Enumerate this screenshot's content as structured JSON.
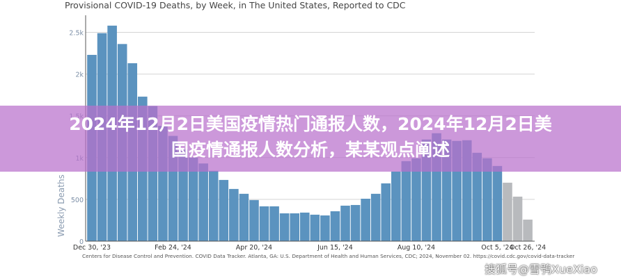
{
  "chart_data": {
    "type": "bar",
    "title": "Provisional COVID-19 Deaths, by Week, in The United States, Reported to CDC",
    "ylabel": "Weekly Deaths",
    "xlabel": "",
    "ylim": [
      0,
      2700
    ],
    "yticks": [
      {
        "v": 0,
        "label": "0"
      },
      {
        "v": 500,
        "label": "500"
      },
      {
        "v": 1000,
        "label": "1k"
      },
      {
        "v": 1500,
        "label": "1.5k"
      },
      {
        "v": 2000,
        "label": "2k"
      },
      {
        "v": 2500,
        "label": "2.5k"
      }
    ],
    "xticks": [
      {
        "week": 1,
        "label": "Dec 30, '23"
      },
      {
        "week": 9,
        "label": "Feb 24, '24"
      },
      {
        "week": 17,
        "label": "Apr 20, '24"
      },
      {
        "week": 25,
        "label": "Jun 15, '24"
      },
      {
        "week": 33,
        "label": "Aug 10, '24"
      },
      {
        "week": 41,
        "label": "Oct 5, '24"
      },
      {
        "week": 44,
        "label": "Oct 26, '24"
      }
    ],
    "grid": true,
    "values": [
      2230,
      2490,
      2580,
      2360,
      2130,
      1730,
      1617,
      1380,
      1260,
      1100,
      1000,
      930,
      842,
      733,
      625,
      567,
      492,
      417,
      417,
      333,
      333,
      342,
      317,
      308,
      358,
      425,
      433,
      508,
      567,
      692,
      833,
      958,
      992,
      1217,
      1292,
      1217,
      1200,
      1208,
      1058,
      992,
      900,
      700,
      533,
      258
    ],
    "provisional_from_week": 42,
    "colors": {
      "reported": "#5b93bf",
      "provisional": "#b8babd"
    }
  },
  "footer": "Centers for Disease Control and Prevention. COVID Data Tracker. Atlanta, GA: U.S. Department of Health and Human Services, CDC; 2024, November 02. https://covid.cdc.gov/covid-data-tracker",
  "banner": {
    "line1": "2024年12月2日美国疫情热门通报人数，2024年12月2日美",
    "line2": "国疫情通报人数分析，某某观点阐述"
  },
  "watermark": "搜狐号@雪鸮XueXiao"
}
